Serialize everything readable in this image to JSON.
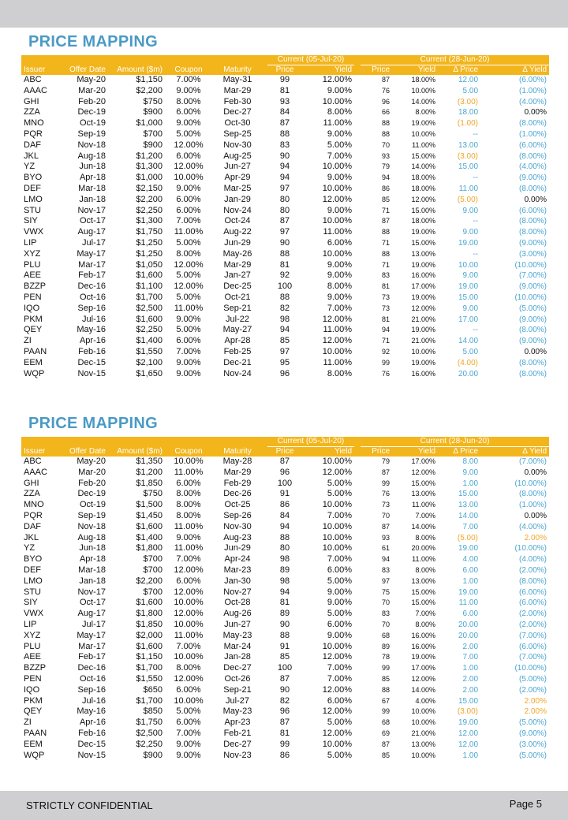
{
  "header": {
    "columns": [
      "Issuer",
      "Offer Date",
      "Amount ($m)",
      "Coupon",
      "Maturity",
      "Price",
      "Yield",
      "Price",
      "Yield",
      "Δ Price",
      "Δ Yield"
    ],
    "group_current": "Current (05-Jul-20)",
    "group_prior": "Current (28-Jun-20)"
  },
  "colors": {
    "title": "#4a9ac5",
    "header_bg": "#f3b51c",
    "positive": "#4aa6cf",
    "negative": "#f0a62a",
    "band": "#cfcfd1"
  },
  "sections": [
    {
      "title": "PRICE MAPPING",
      "rows": [
        [
          "ABC",
          "May-20",
          "$1,150",
          "7.00%",
          "May-31",
          "99",
          "12.00%",
          "87",
          "18.00%",
          "12.00",
          "(6.00%)"
        ],
        [
          "AAAC",
          "Mar-20",
          "$2,200",
          "9.00%",
          "Mar-29",
          "81",
          "9.00%",
          "76",
          "10.00%",
          "5.00",
          "(1.00%)"
        ],
        [
          "GHI",
          "Feb-20",
          "$750",
          "8.00%",
          "Feb-30",
          "93",
          "10.00%",
          "96",
          "14.00%",
          "(3.00)",
          "(4.00%)"
        ],
        [
          "ZZA",
          "Dec-19",
          "$900",
          "6.00%",
          "Dec-27",
          "84",
          "8.00%",
          "66",
          "8.00%",
          "18.00",
          "0.00%"
        ],
        [
          "MNO",
          "Oct-19",
          "$1,000",
          "9.00%",
          "Oct-30",
          "87",
          "11.00%",
          "88",
          "19.00%",
          "(1.00)",
          "(8.00%)"
        ],
        [
          "PQR",
          "Sep-19",
          "$700",
          "5.00%",
          "Sep-25",
          "88",
          "9.00%",
          "88",
          "10.00%",
          "--",
          "(1.00%)"
        ],
        [
          "DAF",
          "Nov-18",
          "$900",
          "12.00%",
          "Nov-30",
          "83",
          "5.00%",
          "70",
          "11.00%",
          "13.00",
          "(6.00%)"
        ],
        [
          "JKL",
          "Aug-18",
          "$1,200",
          "6.00%",
          "Aug-25",
          "90",
          "7.00%",
          "93",
          "15.00%",
          "(3.00)",
          "(8.00%)"
        ],
        [
          "YZ",
          "Jun-18",
          "$1,300",
          "12.00%",
          "Jun-27",
          "94",
          "10.00%",
          "79",
          "14.00%",
          "15.00",
          "(4.00%)"
        ],
        [
          "BYO",
          "Apr-18",
          "$1,000",
          "10.00%",
          "Apr-29",
          "94",
          "9.00%",
          "94",
          "18.00%",
          "--",
          "(9.00%)"
        ],
        [
          "DEF",
          "Mar-18",
          "$2,150",
          "9.00%",
          "Mar-25",
          "97",
          "10.00%",
          "86",
          "18.00%",
          "11.00",
          "(8.00%)"
        ],
        [
          "LMO",
          "Jan-18",
          "$2,200",
          "6.00%",
          "Jan-29",
          "80",
          "12.00%",
          "85",
          "12.00%",
          "(5.00)",
          "0.00%"
        ],
        [
          "STU",
          "Nov-17",
          "$2,250",
          "6.00%",
          "Nov-24",
          "80",
          "9.00%",
          "71",
          "15.00%",
          "9.00",
          "(6.00%)"
        ],
        [
          "SIY",
          "Oct-17",
          "$1,300",
          "7.00%",
          "Oct-24",
          "87",
          "10.00%",
          "87",
          "18.00%",
          "--",
          "(8.00%)"
        ],
        [
          "VWX",
          "Aug-17",
          "$1,750",
          "11.00%",
          "Aug-22",
          "97",
          "11.00%",
          "88",
          "19.00%",
          "9.00",
          "(8.00%)"
        ],
        [
          "LIP",
          "Jul-17",
          "$1,250",
          "5.00%",
          "Jun-29",
          "90",
          "6.00%",
          "71",
          "15.00%",
          "19.00",
          "(9.00%)"
        ],
        [
          "XYZ",
          "May-17",
          "$1,250",
          "8.00%",
          "May-26",
          "88",
          "10.00%",
          "88",
          "13.00%",
          "--",
          "(3.00%)"
        ],
        [
          "PLU",
          "Mar-17",
          "$1,050",
          "12.00%",
          "Mar-29",
          "81",
          "9.00%",
          "71",
          "19.00%",
          "10.00",
          "(10.00%)"
        ],
        [
          "AEE",
          "Feb-17",
          "$1,600",
          "5.00%",
          "Jan-27",
          "92",
          "9.00%",
          "83",
          "16.00%",
          "9.00",
          "(7.00%)"
        ],
        [
          "BZZP",
          "Dec-16",
          "$1,100",
          "12.00%",
          "Dec-25",
          "100",
          "8.00%",
          "81",
          "17.00%",
          "19.00",
          "(9.00%)"
        ],
        [
          "PEN",
          "Oct-16",
          "$1,700",
          "5.00%",
          "Oct-21",
          "88",
          "9.00%",
          "73",
          "19.00%",
          "15.00",
          "(10.00%)"
        ],
        [
          "IQO",
          "Sep-16",
          "$2,500",
          "11.00%",
          "Sep-21",
          "82",
          "7.00%",
          "73",
          "12.00%",
          "9.00",
          "(5.00%)"
        ],
        [
          "PKM",
          "Jul-16",
          "$1,600",
          "9.00%",
          "Jul-22",
          "98",
          "12.00%",
          "81",
          "21.00%",
          "17.00",
          "(9.00%)"
        ],
        [
          "QEY",
          "May-16",
          "$2,250",
          "5.00%",
          "May-27",
          "94",
          "11.00%",
          "94",
          "19.00%",
          "--",
          "(8.00%)"
        ],
        [
          "ZI",
          "Apr-16",
          "$1,400",
          "6.00%",
          "Apr-28",
          "85",
          "12.00%",
          "71",
          "21.00%",
          "14.00",
          "(9.00%)"
        ],
        [
          "PAAN",
          "Feb-16",
          "$1,550",
          "7.00%",
          "Feb-25",
          "97",
          "10.00%",
          "92",
          "10.00%",
          "5.00",
          "0.00%"
        ],
        [
          "EEM",
          "Dec-15",
          "$2,100",
          "9.00%",
          "Dec-21",
          "95",
          "11.00%",
          "99",
          "19.00%",
          "(4.00)",
          "(8.00%)"
        ],
        [
          "WQP",
          "Nov-15",
          "$1,650",
          "9.00%",
          "Nov-24",
          "96",
          "8.00%",
          "76",
          "16.00%",
          "20.00",
          "(8.00%)"
        ]
      ]
    },
    {
      "title": "PRICE MAPPING",
      "rows": [
        [
          "ABC",
          "May-20",
          "$1,350",
          "10.00%",
          "May-28",
          "87",
          "10.00%",
          "79",
          "17.00%",
          "8.00",
          "(7.00%)"
        ],
        [
          "AAAC",
          "Mar-20",
          "$1,200",
          "11.00%",
          "Mar-29",
          "96",
          "12.00%",
          "87",
          "12.00%",
          "9.00",
          "0.00%"
        ],
        [
          "GHI",
          "Feb-20",
          "$1,850",
          "6.00%",
          "Feb-29",
          "100",
          "5.00%",
          "99",
          "15.00%",
          "1.00",
          "(10.00%)"
        ],
        [
          "ZZA",
          "Dec-19",
          "$750",
          "8.00%",
          "Dec-26",
          "91",
          "5.00%",
          "76",
          "13.00%",
          "15.00",
          "(8.00%)"
        ],
        [
          "MNO",
          "Oct-19",
          "$1,500",
          "8.00%",
          "Oct-25",
          "86",
          "10.00%",
          "73",
          "11.00%",
          "13.00",
          "(1.00%)"
        ],
        [
          "PQR",
          "Sep-19",
          "$1,450",
          "8.00%",
          "Sep-26",
          "84",
          "7.00%",
          "70",
          "7.00%",
          "14.00",
          "0.00%"
        ],
        [
          "DAF",
          "Nov-18",
          "$1,600",
          "11.00%",
          "Nov-30",
          "94",
          "10.00%",
          "87",
          "14.00%",
          "7.00",
          "(4.00%)"
        ],
        [
          "JKL",
          "Aug-18",
          "$1,400",
          "9.00%",
          "Aug-23",
          "88",
          "10.00%",
          "93",
          "8.00%",
          "(5.00)",
          "2.00%"
        ],
        [
          "YZ",
          "Jun-18",
          "$1,800",
          "11.00%",
          "Jun-29",
          "80",
          "10.00%",
          "61",
          "20.00%",
          "19.00",
          "(10.00%)"
        ],
        [
          "BYO",
          "Apr-18",
          "$700",
          "7.00%",
          "Apr-24",
          "98",
          "7.00%",
          "94",
          "11.00%",
          "4.00",
          "(4.00%)"
        ],
        [
          "DEF",
          "Mar-18",
          "$700",
          "12.00%",
          "Mar-23",
          "89",
          "6.00%",
          "83",
          "8.00%",
          "6.00",
          "(2.00%)"
        ],
        [
          "LMO",
          "Jan-18",
          "$2,200",
          "6.00%",
          "Jan-30",
          "98",
          "5.00%",
          "97",
          "13.00%",
          "1.00",
          "(8.00%)"
        ],
        [
          "STU",
          "Nov-17",
          "$700",
          "12.00%",
          "Nov-27",
          "94",
          "9.00%",
          "75",
          "15.00%",
          "19.00",
          "(6.00%)"
        ],
        [
          "SIY",
          "Oct-17",
          "$1,600",
          "10.00%",
          "Oct-28",
          "81",
          "9.00%",
          "70",
          "15.00%",
          "11.00",
          "(6.00%)"
        ],
        [
          "VWX",
          "Aug-17",
          "$1,800",
          "12.00%",
          "Aug-26",
          "89",
          "5.00%",
          "83",
          "7.00%",
          "6.00",
          "(2.00%)"
        ],
        [
          "LIP",
          "Jul-17",
          "$1,850",
          "10.00%",
          "Jun-27",
          "90",
          "6.00%",
          "70",
          "8.00%",
          "20.00",
          "(2.00%)"
        ],
        [
          "XYZ",
          "May-17",
          "$2,000",
          "11.00%",
          "May-23",
          "88",
          "9.00%",
          "68",
          "16.00%",
          "20.00",
          "(7.00%)"
        ],
        [
          "PLU",
          "Mar-17",
          "$1,600",
          "7.00%",
          "Mar-24",
          "91",
          "10.00%",
          "89",
          "16.00%",
          "2.00",
          "(6.00%)"
        ],
        [
          "AEE",
          "Feb-17",
          "$1,150",
          "10.00%",
          "Jan-28",
          "85",
          "12.00%",
          "78",
          "19.00%",
          "7.00",
          "(7.00%)"
        ],
        [
          "BZZP",
          "Dec-16",
          "$1,700",
          "8.00%",
          "Dec-27",
          "100",
          "7.00%",
          "99",
          "17.00%",
          "1.00",
          "(10.00%)"
        ],
        [
          "PEN",
          "Oct-16",
          "$1,550",
          "12.00%",
          "Oct-26",
          "87",
          "7.00%",
          "85",
          "12.00%",
          "2.00",
          "(5.00%)"
        ],
        [
          "IQO",
          "Sep-16",
          "$650",
          "6.00%",
          "Sep-21",
          "90",
          "12.00%",
          "88",
          "14.00%",
          "2.00",
          "(2.00%)"
        ],
        [
          "PKM",
          "Jul-16",
          "$1,700",
          "10.00%",
          "Jul-27",
          "82",
          "6.00%",
          "67",
          "4.00%",
          "15.00",
          "2.00%"
        ],
        [
          "QEY",
          "May-16",
          "$850",
          "5.00%",
          "May-23",
          "96",
          "12.00%",
          "99",
          "10.00%",
          "(3.00)",
          "2.00%"
        ],
        [
          "ZI",
          "Apr-16",
          "$1,750",
          "6.00%",
          "Apr-23",
          "87",
          "5.00%",
          "68",
          "10.00%",
          "19.00",
          "(5.00%)"
        ],
        [
          "PAAN",
          "Feb-16",
          "$2,500",
          "7.00%",
          "Feb-21",
          "81",
          "12.00%",
          "69",
          "21.00%",
          "12.00",
          "(9.00%)"
        ],
        [
          "EEM",
          "Dec-15",
          "$2,250",
          "9.00%",
          "Dec-27",
          "99",
          "10.00%",
          "87",
          "13.00%",
          "12.00",
          "(3.00%)"
        ],
        [
          "WQP",
          "Nov-15",
          "$900",
          "9.00%",
          "Nov-23",
          "86",
          "5.00%",
          "85",
          "10.00%",
          "1.00",
          "(5.00%)"
        ]
      ]
    }
  ],
  "footer": {
    "confidential": "STRICTLY CONFIDENTIAL",
    "page": "Page 5"
  }
}
